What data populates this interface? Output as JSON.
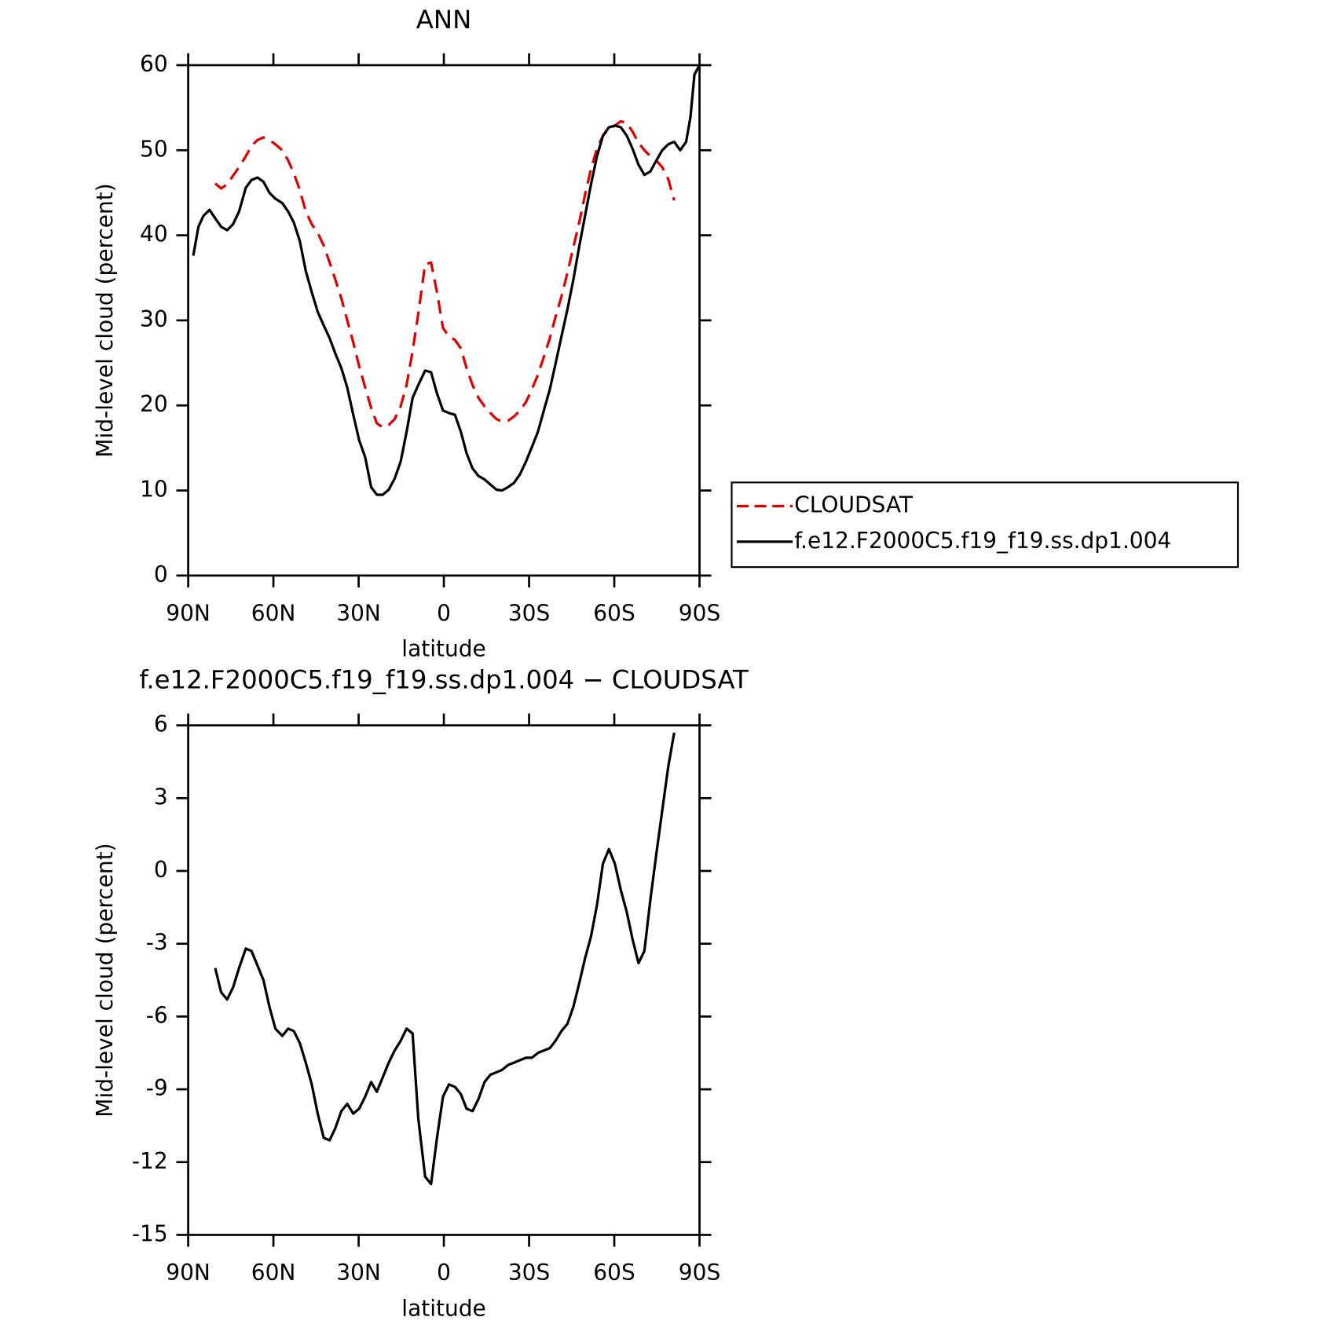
{
  "chart_data": [
    {
      "type": "line",
      "title": "ANN",
      "xlabel": "latitude",
      "ylabel": "Mid-level cloud (percent)",
      "xlim": [
        90,
        -90
      ],
      "ylim": [
        0,
        60
      ],
      "xticks": [
        {
          "value": 90,
          "label": "90N"
        },
        {
          "value": 60,
          "label": "60N"
        },
        {
          "value": 30,
          "label": "30N"
        },
        0,
        {
          "value": -30,
          "label": "30S"
        },
        {
          "value": -60,
          "label": "60S"
        },
        {
          "value": -90,
          "label": "90S"
        }
      ],
      "yticks": [
        0,
        10,
        20,
        30,
        40,
        50,
        60
      ],
      "legend": "right",
      "x": [
        88.2,
        86.4,
        84.6,
        82.5,
        80.5,
        78.4,
        76.3,
        74.2,
        72.1,
        69.7,
        67.7,
        65.6,
        63.5,
        61.4,
        59.3,
        56.9,
        54.8,
        52.8,
        50.7,
        48.6,
        46.5,
        44.4,
        42.3,
        40.2,
        38.2,
        36.1,
        34,
        31.9,
        29.8,
        27.7,
        25.6,
        23.6,
        21.5,
        19.4,
        17.3,
        15.2,
        13.1,
        11,
        9,
        6.6,
        4.5,
        2.4,
        0.3,
        -1.8,
        -3.9,
        -6,
        -8,
        -10.1,
        -12.2,
        -14.3,
        -16.4,
        -18.5,
        -20.5,
        -22.6,
        -24.7,
        -26.8,
        -28.9,
        -31,
        -33.1,
        -35.2,
        -37.3,
        -39.3,
        -41.4,
        -43.5,
        -45.6,
        -47.7,
        -49.7,
        -51.8,
        -53.9,
        -56,
        -58.1,
        -60.2,
        -62.3,
        -64.4,
        -66.4,
        -68.5,
        -70.6,
        -72.7,
        -74.8,
        -76.9,
        -79,
        -81.1,
        -83.2,
        -85.3,
        -86.8,
        -88.2,
        -90
      ],
      "series": [
        {
          "name": "CLOUDSAT",
          "color": "#e00000",
          "dashed": true,
          "values": [
            null,
            null,
            null,
            null,
            46.1,
            45.5,
            46,
            47,
            48,
            49.3,
            50.5,
            51.2,
            51.5,
            51.2,
            50.7,
            50,
            48.8,
            47.3,
            45.3,
            42.8,
            41.3,
            40.3,
            38.8,
            36.8,
            34.8,
            32.6,
            30,
            27.4,
            24.6,
            22.1,
            19.7,
            17.9,
            17.4,
            17.7,
            18.4,
            19.9,
            22.4,
            26.4,
            30.8,
            36.6,
            36.8,
            33.3,
            29.1,
            28.1,
            27.7,
            26.7,
            24.4,
            22.4,
            20.9,
            19.9,
            19.1,
            18.4,
            18.1,
            18.2,
            18.7,
            19.4,
            20.4,
            21.9,
            23.6,
            25.7,
            27.9,
            30.4,
            32.8,
            35.6,
            38.6,
            41.6,
            44.8,
            47.8,
            50.2,
            51.7,
            52.5,
            52.9,
            53.4,
            53.2,
            52.2,
            50.9,
            50,
            49.3,
            48.8,
            48,
            46.6,
            44.1,
            null,
            null,
            null,
            null,
            null
          ]
        },
        {
          "name": "f.e12.F2000C5.f19_f19.ss.dp1.004",
          "color": "#000000",
          "dashed": false,
          "values": [
            37.6,
            41,
            42.3,
            43,
            42,
            41,
            40.6,
            41.3,
            42.8,
            45.6,
            46.5,
            46.8,
            46.3,
            45,
            44.3,
            43.8,
            42.8,
            41.5,
            39.3,
            35.8,
            33.3,
            31,
            29.4,
            27.9,
            26.1,
            24.4,
            22.1,
            18.9,
            15.9,
            13.9,
            10.4,
            9.5,
            9.5,
            10.1,
            11.4,
            13.4,
            16.9,
            20.9,
            22.4,
            24.1,
            23.9,
            21.4,
            19.4,
            19.1,
            18.9,
            16.9,
            14.4,
            12.6,
            11.7,
            11.3,
            10.7,
            10.1,
            10,
            10.4,
            10.9,
            11.9,
            13.4,
            15.1,
            16.9,
            19.4,
            21.9,
            24.9,
            28.1,
            31.3,
            34.8,
            38.8,
            42.3,
            46,
            49.3,
            51.7,
            52.7,
            52.9,
            52.7,
            51.7,
            50.2,
            48.3,
            47.1,
            47.5,
            48.8,
            50,
            50.7,
            51,
            50,
            51,
            53.9,
            58.9,
            60
          ]
        }
      ]
    },
    {
      "type": "line",
      "title": "f.e12.F2000C5.f19_f19.ss.dp1.004 − CLOUDSAT",
      "xlabel": "latitude",
      "ylabel": "Mid-level cloud (percent)",
      "xlim": [
        90,
        -90
      ],
      "ylim": [
        -15,
        6
      ],
      "xticks": [
        {
          "value": 90,
          "label": "90N"
        },
        {
          "value": 60,
          "label": "60N"
        },
        {
          "value": 30,
          "label": "30N"
        },
        0,
        {
          "value": -30,
          "label": "30S"
        },
        {
          "value": -60,
          "label": "60S"
        },
        {
          "value": -90,
          "label": "90S"
        }
      ],
      "yticks": [
        -15,
        -12,
        -9,
        -6,
        -3,
        0,
        3,
        6
      ],
      "x": [
        80.5,
        78.4,
        76.3,
        74.2,
        72.1,
        69.7,
        67.7,
        65.6,
        63.5,
        61.4,
        59.3,
        56.9,
        54.8,
        52.8,
        50.7,
        48.6,
        46.5,
        44.4,
        42.3,
        40.2,
        38.2,
        36.1,
        34,
        31.9,
        29.8,
        27.7,
        25.6,
        23.6,
        21.5,
        19.4,
        17.3,
        15.2,
        13.1,
        11,
        9,
        6.6,
        4.5,
        2.4,
        0.3,
        -1.8,
        -3.9,
        -6,
        -8,
        -10.1,
        -12.2,
        -14.3,
        -16.4,
        -18.5,
        -20.5,
        -22.6,
        -24.7,
        -26.8,
        -28.9,
        -31,
        -33.1,
        -35.2,
        -37.3,
        -39.3,
        -41.4,
        -43.5,
        -45.6,
        -47.7,
        -49.7,
        -51.8,
        -53.9,
        -56,
        -58.1,
        -60.2,
        -62.3,
        -64.4,
        -66.4,
        -68.5,
        -70.6,
        -72.7,
        -74.8,
        -76.9,
        -79,
        -81.1
      ],
      "series": [
        {
          "color": "#000000",
          "dashed": false,
          "values": [
            -4.0,
            -5.0,
            -5.3,
            -4.8,
            -4.0,
            -3.2,
            -3.3,
            -3.9,
            -4.5,
            -5.6,
            -6.5,
            -6.8,
            -6.5,
            -6.6,
            -7.1,
            -7.9,
            -8.8,
            -10.0,
            -11.0,
            -11.1,
            -10.6,
            -9.9,
            -9.6,
            -10.0,
            -9.8,
            -9.3,
            -8.7,
            -9.1,
            -8.5,
            -7.9,
            -7.4,
            -7.0,
            -6.5,
            -6.7,
            -10.2,
            -12.6,
            -12.9,
            -11.0,
            -9.3,
            -8.8,
            -8.9,
            -9.2,
            -9.8,
            -9.9,
            -9.4,
            -8.7,
            -8.4,
            -8.3,
            -8.2,
            -8.0,
            -7.9,
            -7.8,
            -7.7,
            -7.7,
            -7.5,
            -7.4,
            -7.3,
            -7.0,
            -6.6,
            -6.3,
            -5.6,
            -4.6,
            -3.6,
            -2.7,
            -1.4,
            0.3,
            0.9,
            0.3,
            -0.8,
            -1.7,
            -2.8,
            -3.8,
            -3.3,
            -1.2,
            0.7,
            2.5,
            4.3,
            5.7
          ]
        }
      ]
    }
  ]
}
